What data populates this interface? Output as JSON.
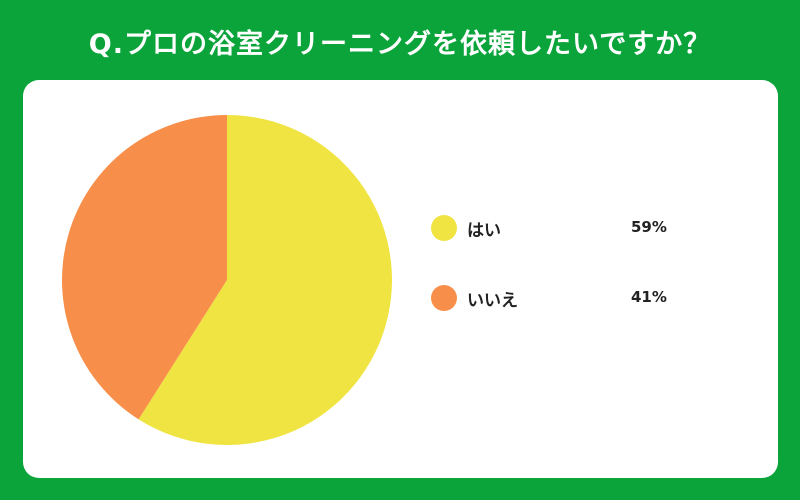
{
  "title": "Q.プロの浴室クリーニングを依頼したいですか？",
  "colors": {
    "background": "#0aa43a",
    "card": "#ffffff",
    "yes": "#f0e442",
    "no": "#f78f4a"
  },
  "chart_data": {
    "type": "pie",
    "title": "Q.プロの浴室クリーニングを依頼したいですか？",
    "legend_position": "right",
    "slices": [
      {
        "label": "はい",
        "value": 59,
        "display": "59%",
        "color": "#f0e442"
      },
      {
        "label": "いいえ",
        "value": 41,
        "display": "41%",
        "color": "#f78f4a"
      }
    ]
  }
}
